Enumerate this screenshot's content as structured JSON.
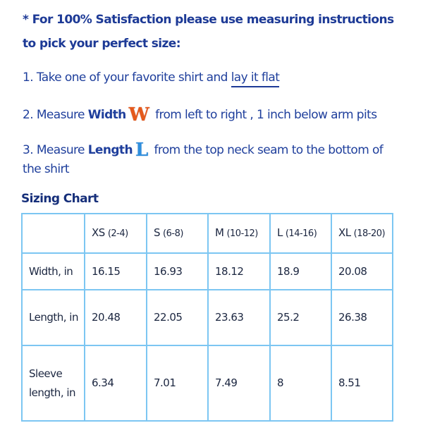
{
  "intro": {
    "line1": "* For 100% Satisfaction please use measuring instructions",
    "line2": "to pick your perfect size:"
  },
  "steps": [
    {
      "prefix": "1. Take one of your favorite shirt and ",
      "link": "lay it flat"
    },
    {
      "prefix": "2. Measure ",
      "bold": "Width",
      "badge": "W",
      "suffix": " from left to right , 1 inch below arm pits"
    },
    {
      "prefix": "3. Measure ",
      "bold": "Length",
      "badge": "L",
      "suffix": " from the top neck seam to the bottom of",
      "cont": "the shirt"
    }
  ],
  "badge_colors": {
    "W": "#e5591b",
    "L": "#2f8fde"
  },
  "sizing_chart": {
    "title": "Sizing Chart",
    "headers": [
      {
        "size": "XS",
        "range": "(2-4)"
      },
      {
        "size": "S",
        "range": "(6-8)"
      },
      {
        "size": "M",
        "range": "(10-12)"
      },
      {
        "size": "L",
        "range": "(14-16)"
      },
      {
        "size": "XL",
        "range": "(18-20)"
      }
    ],
    "rows": [
      {
        "label": "Width, in",
        "values": [
          "16.15",
          "16.93",
          "18.12",
          "18.9",
          "20.08"
        ]
      },
      {
        "label": "Length, in",
        "values": [
          "20.48",
          "22.05",
          "23.63",
          "25.2",
          "26.38"
        ]
      },
      {
        "label": "Sleeve length, in",
        "values": [
          "6.34",
          "7.01",
          "7.49",
          "8",
          "8.51"
        ]
      }
    ]
  }
}
